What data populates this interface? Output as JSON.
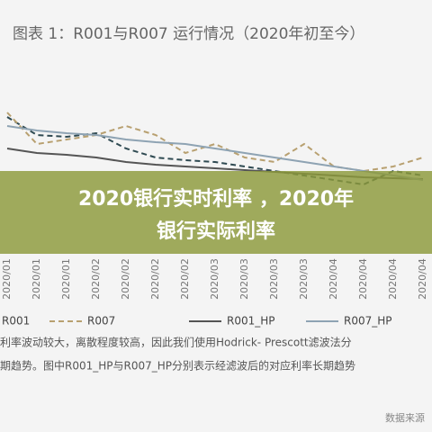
{
  "chart_data": {
    "type": "line",
    "title": "图表 1：R001与R007 运行情况（2020年初至今）",
    "categories": [
      "2020/01",
      "2020/01",
      "2020/01",
      "2020/02",
      "2020/02",
      "2020/02",
      "2020/02",
      "2020/03",
      "2020/03",
      "2020/03",
      "2020/03",
      "2020/04",
      "2020/04",
      "2020/04",
      "2020/04"
    ],
    "series": [
      {
        "name": "R001",
        "color": "#2f4a52",
        "dash": true,
        "values": [
          3.4,
          3.0,
          2.96,
          3.04,
          2.7,
          2.5,
          2.44,
          2.4,
          2.3,
          2.2,
          2.1,
          2.0,
          1.9,
          2.2,
          2.1
        ]
      },
      {
        "name": "R007",
        "color": "#b8a070",
        "dash": true,
        "values": [
          3.5,
          2.8,
          2.9,
          3.0,
          3.2,
          3.0,
          2.6,
          2.8,
          2.5,
          2.4,
          2.8,
          2.3,
          2.2,
          2.3,
          2.5
        ]
      },
      {
        "name": "R001_HP",
        "color": "#555555",
        "dash": false,
        "values": [
          2.7,
          2.6,
          2.56,
          2.5,
          2.4,
          2.34,
          2.3,
          2.26,
          2.22,
          2.18,
          2.14,
          2.1,
          2.06,
          2.04,
          2.02
        ]
      },
      {
        "name": "R007_HP",
        "color": "#8ea3b3",
        "dash": false,
        "values": [
          3.2,
          3.1,
          3.04,
          3.0,
          2.9,
          2.84,
          2.8,
          2.7,
          2.6,
          2.5,
          2.4,
          2.3,
          2.2,
          2.1,
          2.0
        ]
      }
    ],
    "ylim": [
      0,
      4
    ],
    "notes": [
      "利率波动较大，离散程度较高，因此我们使用Hodrick- Prescott滤波法分",
      "期趋势。图中R001_HP与R007_HP分别表示经滤波后的对应利率长期趋势"
    ],
    "source": "数据来源"
  },
  "banner": {
    "lines": [
      "2020银行实时利率 ，2020年",
      "银行实际利率"
    ]
  }
}
